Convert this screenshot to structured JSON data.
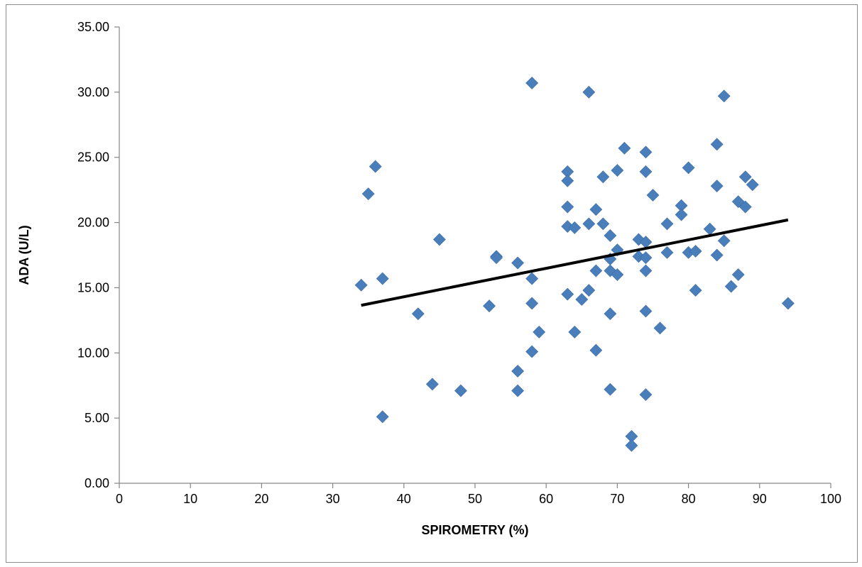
{
  "chart_data": {
    "type": "scatter",
    "xlabel": "SPIROMETRY (%)",
    "ylabel": "ADA (U/L)",
    "xlim": [
      0,
      100
    ],
    "ylim": [
      0,
      35
    ],
    "x_ticks": [
      "0",
      "10",
      "20",
      "30",
      "40",
      "50",
      "60",
      "70",
      "80",
      "90",
      "100"
    ],
    "y_ticks": [
      "0.00",
      "5.00",
      "10.00",
      "15.00",
      "20.00",
      "25.00",
      "30.00",
      "35.00"
    ],
    "grid": false,
    "legend": "none",
    "marker": "diamond",
    "colors": {
      "points": "#4a7ebb",
      "trendline": "#000000",
      "axis": "#868686"
    },
    "points": [
      [
        34,
        15.2
      ],
      [
        35,
        22.2
      ],
      [
        36,
        24.3
      ],
      [
        37,
        15.7
      ],
      [
        37,
        5.1
      ],
      [
        42,
        13.0
      ],
      [
        44,
        7.6
      ],
      [
        45,
        18.7
      ],
      [
        48,
        7.1
      ],
      [
        52,
        13.6
      ],
      [
        53,
        17.4
      ],
      [
        53,
        17.3
      ],
      [
        56,
        16.9
      ],
      [
        56,
        8.6
      ],
      [
        56,
        7.1
      ],
      [
        58,
        30.7
      ],
      [
        58,
        15.7
      ],
      [
        58,
        13.8
      ],
      [
        58,
        10.1
      ],
      [
        59,
        11.6
      ],
      [
        63,
        23.9
      ],
      [
        63,
        23.2
      ],
      [
        63,
        21.2
      ],
      [
        63,
        19.7
      ],
      [
        63,
        14.5
      ],
      [
        64,
        19.6
      ],
      [
        64,
        11.6
      ],
      [
        65,
        14.1
      ],
      [
        66,
        30.0
      ],
      [
        66,
        19.9
      ],
      [
        66,
        14.8
      ],
      [
        67,
        21.0
      ],
      [
        67,
        16.3
      ],
      [
        67,
        10.2
      ],
      [
        68,
        23.5
      ],
      [
        68,
        19.9
      ],
      [
        69,
        19.0
      ],
      [
        69,
        17.2
      ],
      [
        69,
        16.3
      ],
      [
        69,
        13.0
      ],
      [
        69,
        7.2
      ],
      [
        70,
        24.0
      ],
      [
        70,
        17.9
      ],
      [
        70,
        16.0
      ],
      [
        71,
        25.7
      ],
      [
        72,
        3.6
      ],
      [
        72,
        2.9
      ],
      [
        73,
        18.7
      ],
      [
        73,
        17.4
      ],
      [
        74,
        25.4
      ],
      [
        74,
        23.9
      ],
      [
        74,
        18.5
      ],
      [
        74,
        17.3
      ],
      [
        74,
        16.3
      ],
      [
        74,
        13.2
      ],
      [
        74,
        6.8
      ],
      [
        75,
        22.1
      ],
      [
        76,
        11.9
      ],
      [
        77,
        19.9
      ],
      [
        77,
        17.7
      ],
      [
        79,
        21.3
      ],
      [
        79,
        20.6
      ],
      [
        80,
        24.2
      ],
      [
        80,
        17.7
      ],
      [
        81,
        17.8
      ],
      [
        81,
        14.8
      ],
      [
        83,
        19.5
      ],
      [
        84,
        26.0
      ],
      [
        84,
        22.8
      ],
      [
        84,
        17.5
      ],
      [
        85,
        29.7
      ],
      [
        85,
        18.6
      ],
      [
        86,
        15.1
      ],
      [
        87,
        21.6
      ],
      [
        87,
        16.0
      ],
      [
        88,
        23.5
      ],
      [
        88,
        21.2
      ],
      [
        89,
        22.9
      ],
      [
        94,
        13.8
      ]
    ],
    "trendline": {
      "x": [
        34,
        94
      ],
      "y": [
        13.65,
        20.2
      ]
    }
  }
}
